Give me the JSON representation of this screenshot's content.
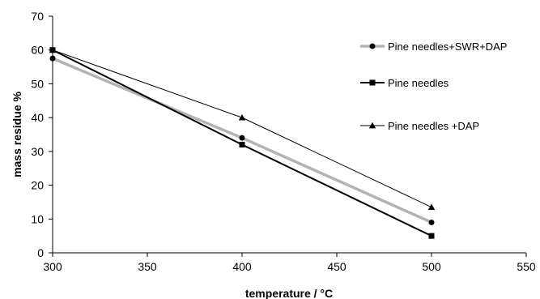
{
  "chart_data": {
    "type": "line",
    "xlabel": "temperature / °C",
    "ylabel": "mass residue %",
    "xlim": [
      300,
      550
    ],
    "ylim": [
      0,
      70
    ],
    "x_ticks": [
      "300",
      "350",
      "400",
      "450",
      "500",
      "550"
    ],
    "y_ticks": [
      "0",
      "10",
      "20",
      "30",
      "40",
      "50",
      "60",
      "70"
    ],
    "grid": false,
    "legend_position": "right",
    "series": [
      {
        "name": "Pine needles+SWR+DAP",
        "marker": "circle",
        "color": "#b3b3b3",
        "x": [
          300,
          400,
          500
        ],
        "y": [
          57.5,
          34,
          9
        ]
      },
      {
        "name": "Pine needles",
        "marker": "square",
        "color": "#000000",
        "x": [
          300,
          400,
          500
        ],
        "y": [
          60,
          32,
          5
        ]
      },
      {
        "name": "Pine needles +DAP",
        "marker": "triangle",
        "color": "#000000",
        "x": [
          300,
          400,
          500
        ],
        "y": [
          60,
          40,
          13.5
        ]
      }
    ]
  }
}
